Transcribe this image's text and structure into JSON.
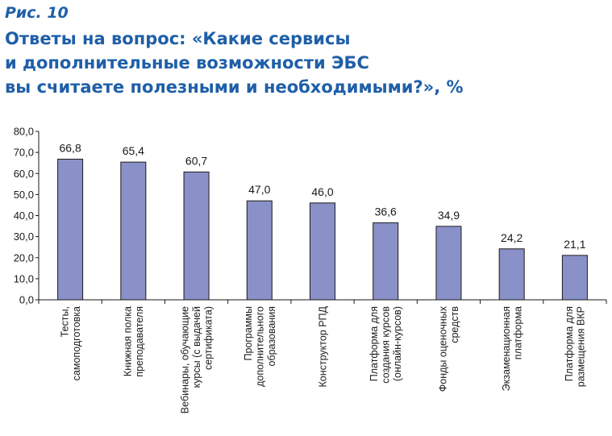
{
  "figure_label": "Рис. 10",
  "title_lines": [
    "Ответы на вопрос: «Какие сервисы",
    "и дополнительные возможности ЭБС",
    "вы считаете полезными и необходимыми?», %"
  ],
  "colors": {
    "title": "#1f5fa8",
    "bar_fill": "#8a91c8",
    "bar_stroke": "#1a1a1a",
    "axis": "#1a1a1a"
  },
  "chart_data": {
    "type": "bar",
    "title": "Ответы на вопрос: «Какие сервисы и дополнительные возможности ЭБС вы считаете полезными и необходимыми?», %",
    "xlabel": "",
    "ylabel": "",
    "ylim": [
      0,
      80
    ],
    "grid": false,
    "yticks": [
      "0,0",
      "10,0",
      "20,0",
      "30,0",
      "40,0",
      "50,0",
      "60,0",
      "70,0",
      "80,0"
    ],
    "categories": [
      [
        "Тесты,",
        "самоподготовка"
      ],
      [
        "Книжная полка",
        "преподавателя"
      ],
      [
        "Вебинары, обучающие",
        "курсы (с выдачей",
        "сертификата)"
      ],
      [
        "Программы",
        "дополнительного",
        "образования"
      ],
      [
        "Конструктор РПД"
      ],
      [
        "Платформа для",
        "создания курсов",
        "(онлайн-курсов)"
      ],
      [
        "Фонды оценочных",
        "средств"
      ],
      [
        "Экзаменационная",
        "платформа"
      ],
      [
        "Платформа для",
        "размещения ВКР"
      ]
    ],
    "values": [
      66.8,
      65.4,
      60.7,
      47.0,
      46.0,
      36.6,
      34.9,
      24.2,
      21.1
    ],
    "value_labels": [
      "66,8",
      "65,4",
      "60,7",
      "47,0",
      "46,0",
      "36,6",
      "34,9",
      "24,2",
      "21,1"
    ]
  }
}
